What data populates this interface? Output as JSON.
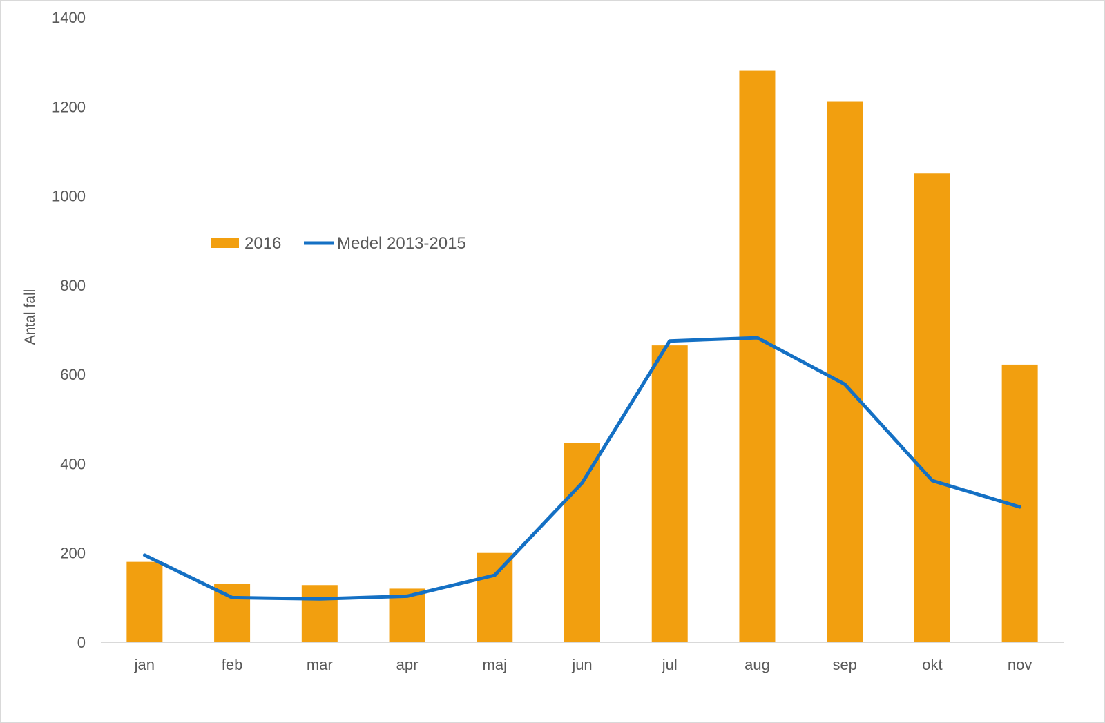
{
  "chart_data": {
    "type": "bar",
    "title": "",
    "xlabel": "",
    "ylabel": "Antal fall",
    "categories": [
      "jan",
      "feb",
      "mar",
      "apr",
      "maj",
      "jun",
      "jul",
      "aug",
      "sep",
      "okt",
      "nov"
    ],
    "series": [
      {
        "name": "2016",
        "type": "bar",
        "color": "#F29F0F",
        "values": [
          180,
          130,
          128,
          120,
          200,
          447,
          665,
          1280,
          1212,
          1050,
          622
        ]
      },
      {
        "name": "Medel 2013-2015",
        "type": "line",
        "color": "#1470C4",
        "values": [
          195,
          100,
          97,
          103,
          150,
          357,
          675,
          682,
          578,
          362,
          303
        ]
      }
    ],
    "ylim": [
      0,
      1400
    ],
    "yticks": [
      "0",
      "200",
      "400",
      "600",
      "800",
      "1000",
      "1200",
      "1400"
    ],
    "grid": false,
    "legend_position": "upper-left"
  }
}
